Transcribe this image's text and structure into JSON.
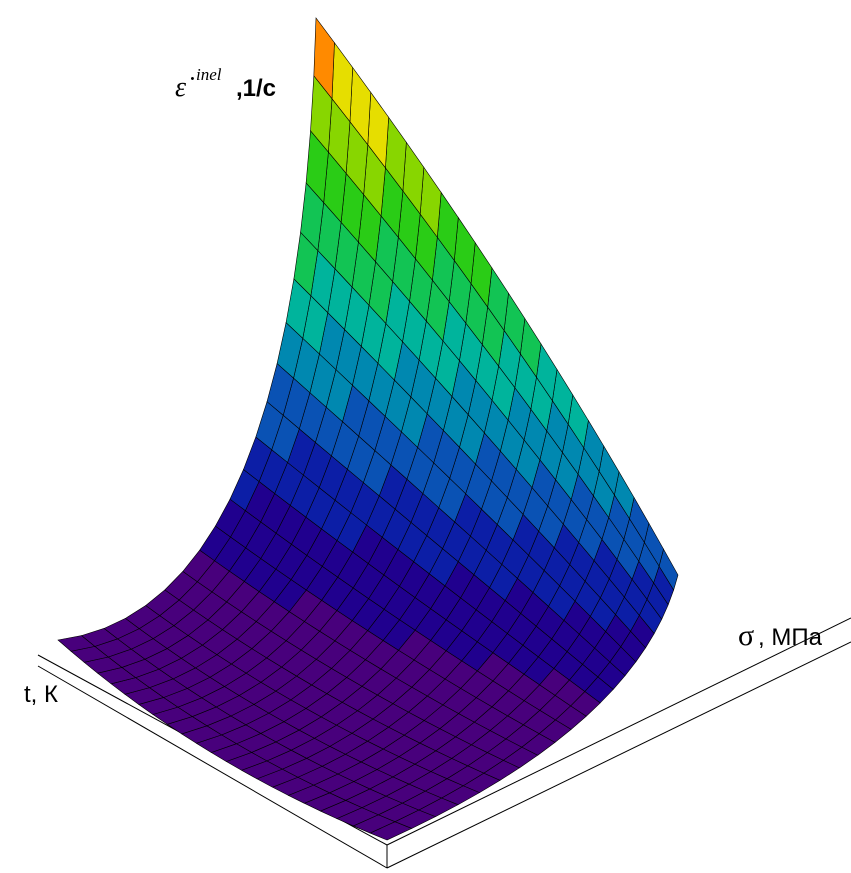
{
  "chart_data": {
    "type": "surface3d",
    "z_axis_label": {
      "symbol": "ε̇",
      "superscript": "inel",
      "unit": ",1/с"
    },
    "x_axis_label": "t, К",
    "y_axis_label": {
      "symbol": "σ",
      "unit": ", МПа"
    },
    "colors": [
      "#48007c",
      "#20008e",
      "#0c1ea6",
      "#0a52b4",
      "#0088b0",
      "#00b49c",
      "#12c454",
      "#2acc16",
      "#88d600",
      "#e6de00",
      "#ff8a00"
    ],
    "grid": true
  }
}
